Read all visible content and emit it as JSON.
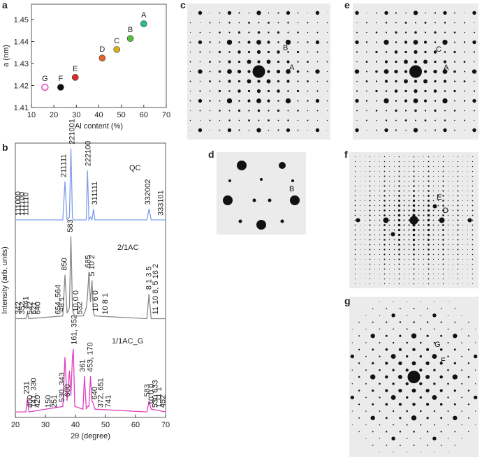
{
  "chart_data": [
    {
      "type": "scatter",
      "panel": "a",
      "xlabel": "Al content (%)",
      "ylabel": "a (nm)",
      "xlim": [
        10,
        70
      ],
      "xticks": [
        10,
        20,
        30,
        40,
        50,
        60,
        70
      ],
      "ylim": [
        1.41,
        1.457
      ],
      "yticks": [
        1.41,
        1.42,
        1.43,
        1.44,
        1.45
      ],
      "series": [
        {
          "name": "G",
          "color": "#f040c0",
          "fill": "#ffffff",
          "x": [
            16
          ],
          "values": [
            1.4192
          ]
        },
        {
          "name": "F",
          "color": "#111111",
          "x": [
            23
          ],
          "values": [
            1.4192
          ]
        },
        {
          "name": "E",
          "color": "#e02828",
          "x": [
            29.5
          ],
          "values": [
            1.4237
          ]
        },
        {
          "name": "D",
          "color": "#e8602a",
          "x": [
            41.5
          ],
          "values": [
            1.4325
          ]
        },
        {
          "name": "C",
          "color": "#d8b020",
          "x": [
            48
          ],
          "values": [
            1.4364
          ]
        },
        {
          "name": "B",
          "color": "#55c040",
          "x": [
            54
          ],
          "values": [
            1.4414
          ]
        },
        {
          "name": "A",
          "color": "#2dbe7a",
          "x": [
            60
          ],
          "values": [
            1.4481
          ]
        }
      ]
    },
    {
      "type": "line",
      "panel": "b",
      "xlabel": "2θ (degree)",
      "ylabel": "Intensity (arb. units)",
      "xlim": [
        20,
        70
      ],
      "xticks": [
        20,
        30,
        40,
        50,
        60,
        70
      ],
      "ylim": [
        0,
        100
      ],
      "x": [
        20,
        23.5,
        24,
        24.5,
        35.8,
        36.5,
        37.2,
        38,
        38.5,
        39,
        39.3,
        39.8,
        42.5,
        43,
        43.6,
        44,
        44.5,
        45,
        45.5,
        46,
        46.5,
        63.8,
        64.5,
        65.2,
        70
      ],
      "series": [
        {
          "name": "QC",
          "color": "#7f9fe8",
          "values": [
            72,
            72,
            72,
            72,
            72,
            86,
            72,
            73,
            98,
            73,
            72,
            72,
            72,
            72,
            72,
            90,
            72,
            73,
            72,
            76,
            72,
            72,
            76,
            72,
            72
          ],
          "peak_labels": [
            {
              "text": "111000",
              "x": 21
            },
            {
              "text": "111100",
              "x": 22.3
            },
            {
              "text": "111110",
              "x": 23.6
            },
            {
              "text": "211111",
              "x": 36.2
            },
            {
              "text": "221001",
              "x": 38.9
            },
            {
              "text": "222100",
              "x": 44.3
            },
            {
              "text": "311111",
              "x": 46.5
            },
            {
              "text": "332002",
              "x": 64.2
            },
            {
              "text": "333101",
              "x": 68.5
            }
          ]
        },
        {
          "name": "2/1AC",
          "color": "#888888",
          "values": [
            36,
            36,
            38,
            36,
            37,
            52,
            38,
            40,
            66,
            40,
            38,
            37,
            37,
            38,
            40,
            44,
            53,
            42,
            50,
            38,
            37,
            36,
            45,
            36,
            36
          ],
          "peak_labels": [
            {
              "text": "342",
              "x": 21
            },
            {
              "text": "352",
              "x": 22.3
            },
            {
              "text": "441",
              "x": 23.6
            },
            {
              "text": "542",
              "x": 25
            },
            {
              "text": "621",
              "x": 26.3
            },
            {
              "text": "640",
              "x": 27.6
            },
            {
              "text": "654, 564",
              "x": 34.3
            },
            {
              "text": "48 1",
              "x": 35.5
            },
            {
              "text": "850",
              "x": 36.4
            },
            {
              "text": "583",
              "x": 38.4
            },
            {
              "text": "10 0 0",
              "x": 40.2
            },
            {
              "text": "532",
              "x": 41.5
            },
            {
              "text": "685",
              "x": 44.3
            },
            {
              "text": "5 10 2",
              "x": 45.6
            },
            {
              "text": "10 6 0",
              "x": 46.8
            },
            {
              "text": "10 8 1",
              "x": 50
            },
            {
              "text": "8 1 3 5",
              "x": 64.5
            },
            {
              "text": "11 10 8, 5 16 2",
              "x": 66.8
            }
          ]
        },
        {
          "name": "1/1AC_G",
          "color": "#e040c0",
          "values": [
            2,
            2,
            7,
            2,
            4,
            22,
            6,
            17,
            8,
            22,
            25,
            4,
            3,
            15,
            3,
            4,
            4,
            15,
            6,
            5,
            3,
            2,
            6,
            3,
            2
          ],
          "peak_labels": [
            {
              "text": "231",
              "x": 23.8
            },
            {
              "text": "400",
              "x": 25
            },
            {
              "text": "141, 330",
              "x": 26.2
            },
            {
              "text": "420",
              "x": 27.5
            },
            {
              "text": "150",
              "x": 31
            },
            {
              "text": "251",
              "x": 33
            },
            {
              "text": "530, 343",
              "x": 35.6
            },
            {
              "text": "600",
              "x": 37.4
            },
            {
              "text": "161, 352",
              "x": 39.6
            },
            {
              "text": "361",
              "x": 42.5
            },
            {
              "text": "453, 170",
              "x": 45
            },
            {
              "text": "640",
              "x": 46.5
            },
            {
              "text": "372, 651",
              "x": 48.5
            },
            {
              "text": "741",
              "x": 51
            },
            {
              "text": "583",
              "x": 64
            },
            {
              "text": "10 0 0",
              "x": 65.3
            },
            {
              "text": "530 633",
              "x": 66.6
            },
            {
              "text": "1 11 1",
              "x": 67.9
            },
            {
              "text": "452",
              "x": 69.2
            }
          ]
        }
      ]
    }
  ],
  "diffraction_panels": [
    {
      "panel": "c",
      "spots": [
        "B",
        "A"
      ]
    },
    {
      "panel": "d",
      "spots": [
        "B"
      ]
    },
    {
      "panel": "e",
      "spots": [
        "C",
        "A"
      ]
    },
    {
      "panel": "f",
      "spots": [
        "E",
        "D"
      ]
    },
    {
      "panel": "g",
      "spots": [
        "G",
        "F"
      ]
    }
  ]
}
